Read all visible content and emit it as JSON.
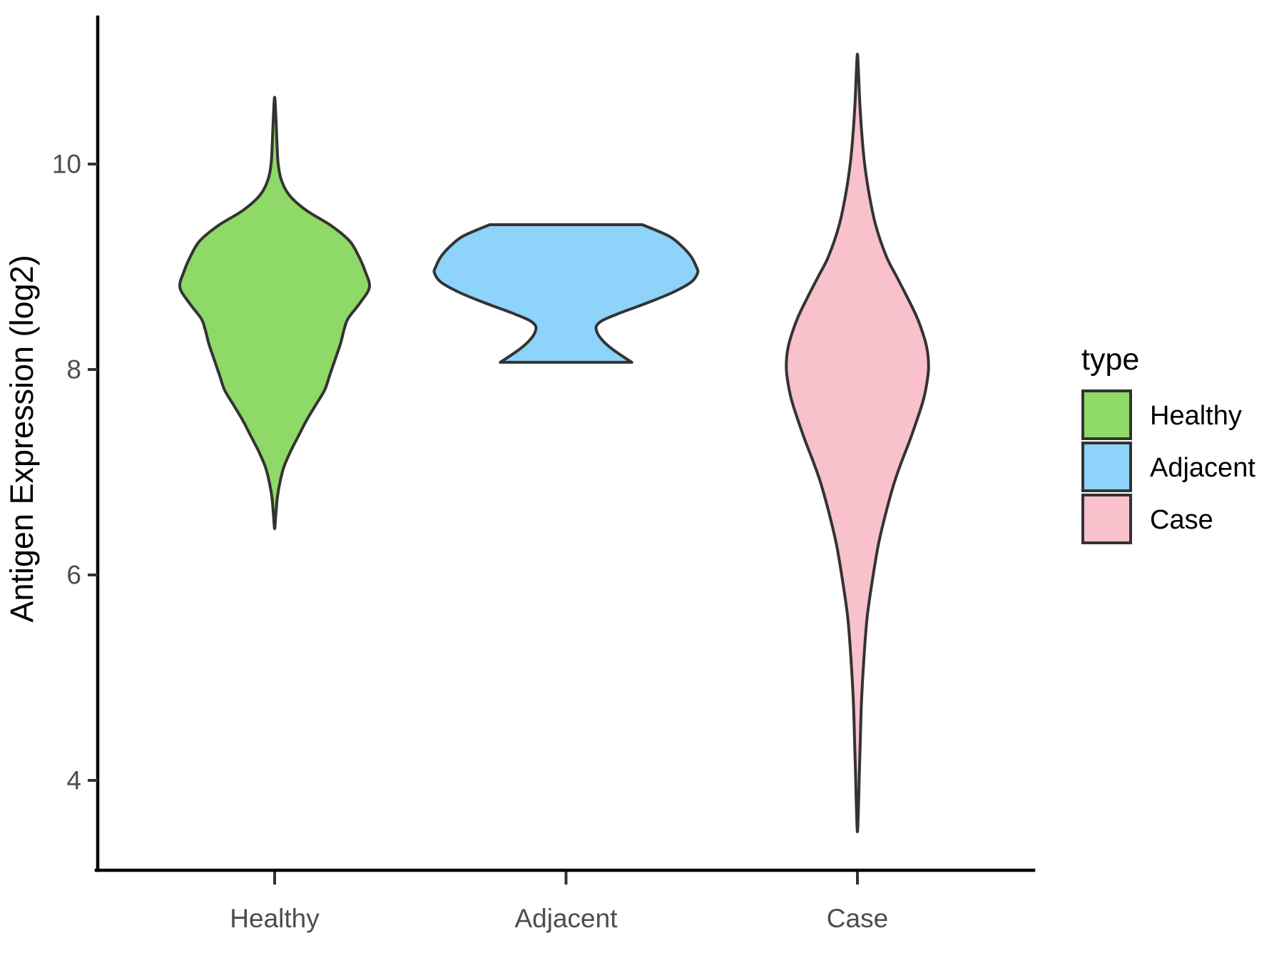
{
  "axes": {
    "y": {
      "title": "Antigen Expression (log2)",
      "ticks": [
        {
          "label": "10",
          "value": 10
        },
        {
          "label": "8",
          "value": 8
        },
        {
          "label": "6",
          "value": 6
        },
        {
          "label": "4",
          "value": 4
        }
      ]
    },
    "x": {
      "categories": [
        {
          "label": "Healthy"
        },
        {
          "label": "Adjacent"
        },
        {
          "label": "Case"
        }
      ]
    }
  },
  "legend": {
    "title": "type",
    "position": "right",
    "items": [
      {
        "label": "Healthy",
        "color": "#8FD968"
      },
      {
        "label": "Adjacent",
        "color": "#8DD3FA"
      },
      {
        "label": "Case",
        "color": "#F8C1CB"
      }
    ]
  },
  "style": {
    "outline_color": "#333333",
    "axis_color": "#000000",
    "tick_text_color": "#4D4D4D",
    "background": "#ffffff"
  },
  "chart_data": {
    "type": "violin",
    "title": "",
    "xlabel": "",
    "ylabel": "Antigen Expression (log2)",
    "y_ticks": [
      4,
      6,
      8,
      10
    ],
    "y_axis_range": [
      3.1,
      11.4
    ],
    "grid": false,
    "legend_position": "right",
    "categories": [
      "Healthy",
      "Adjacent",
      "Case"
    ],
    "series": [
      {
        "name": "Healthy",
        "color": "#8FD968",
        "min": 6.45,
        "max": 10.65,
        "widest_at": 8.8,
        "truncated_ends": false,
        "silhouette": [
          [
            10.65,
            0.0
          ],
          [
            10.45,
            0.01
          ],
          [
            10.2,
            0.018
          ],
          [
            10.0,
            0.027
          ],
          [
            9.85,
            0.05
          ],
          [
            9.7,
            0.11
          ],
          [
            9.55,
            0.24
          ],
          [
            9.4,
            0.43
          ],
          [
            9.25,
            0.57
          ],
          [
            9.1,
            0.64
          ],
          [
            8.95,
            0.69
          ],
          [
            8.8,
            0.72
          ],
          [
            8.65,
            0.65
          ],
          [
            8.5,
            0.56
          ],
          [
            8.4,
            0.53
          ],
          [
            8.25,
            0.5
          ],
          [
            8.1,
            0.46
          ],
          [
            7.95,
            0.42
          ],
          [
            7.8,
            0.38
          ],
          [
            7.65,
            0.31
          ],
          [
            7.5,
            0.24
          ],
          [
            7.35,
            0.18
          ],
          [
            7.2,
            0.12
          ],
          [
            7.05,
            0.07
          ],
          [
            6.9,
            0.04
          ],
          [
            6.75,
            0.02
          ],
          [
            6.6,
            0.01
          ],
          [
            6.45,
            0.0
          ]
        ]
      },
      {
        "name": "Adjacent",
        "color": "#8DD3FA",
        "min": 8.07,
        "max": 9.41,
        "widest_at": 8.94,
        "truncated_ends": true,
        "silhouette": [
          [
            9.41,
            0.58
          ],
          [
            9.3,
            0.78
          ],
          [
            9.2,
            0.88
          ],
          [
            9.1,
            0.95
          ],
          [
            9.0,
            0.99
          ],
          [
            8.94,
            1.0
          ],
          [
            8.85,
            0.95
          ],
          [
            8.75,
            0.81
          ],
          [
            8.65,
            0.62
          ],
          [
            8.55,
            0.41
          ],
          [
            8.48,
            0.28
          ],
          [
            8.42,
            0.23
          ],
          [
            8.35,
            0.24
          ],
          [
            8.28,
            0.28
          ],
          [
            8.2,
            0.35
          ],
          [
            8.12,
            0.44
          ],
          [
            8.07,
            0.5
          ]
        ]
      },
      {
        "name": "Case",
        "color": "#F8C1CB",
        "min": 3.5,
        "max": 11.07,
        "widest_at": 8.0,
        "truncated_ends": false,
        "silhouette": [
          [
            11.07,
            0.0
          ],
          [
            10.9,
            0.008
          ],
          [
            10.6,
            0.018
          ],
          [
            10.3,
            0.033
          ],
          [
            10.0,
            0.055
          ],
          [
            9.7,
            0.09
          ],
          [
            9.4,
            0.14
          ],
          [
            9.1,
            0.22
          ],
          [
            8.9,
            0.3
          ],
          [
            8.7,
            0.38
          ],
          [
            8.5,
            0.455
          ],
          [
            8.3,
            0.51
          ],
          [
            8.15,
            0.535
          ],
          [
            8.0,
            0.54
          ],
          [
            7.85,
            0.525
          ],
          [
            7.7,
            0.5
          ],
          [
            7.5,
            0.45
          ],
          [
            7.3,
            0.395
          ],
          [
            7.1,
            0.335
          ],
          [
            6.9,
            0.28
          ],
          [
            6.6,
            0.215
          ],
          [
            6.3,
            0.16
          ],
          [
            6.0,
            0.12
          ],
          [
            5.6,
            0.075
          ],
          [
            5.2,
            0.05
          ],
          [
            4.8,
            0.032
          ],
          [
            4.4,
            0.022
          ],
          [
            4.0,
            0.013
          ],
          [
            3.75,
            0.008
          ],
          [
            3.5,
            0.0
          ]
        ]
      }
    ]
  }
}
